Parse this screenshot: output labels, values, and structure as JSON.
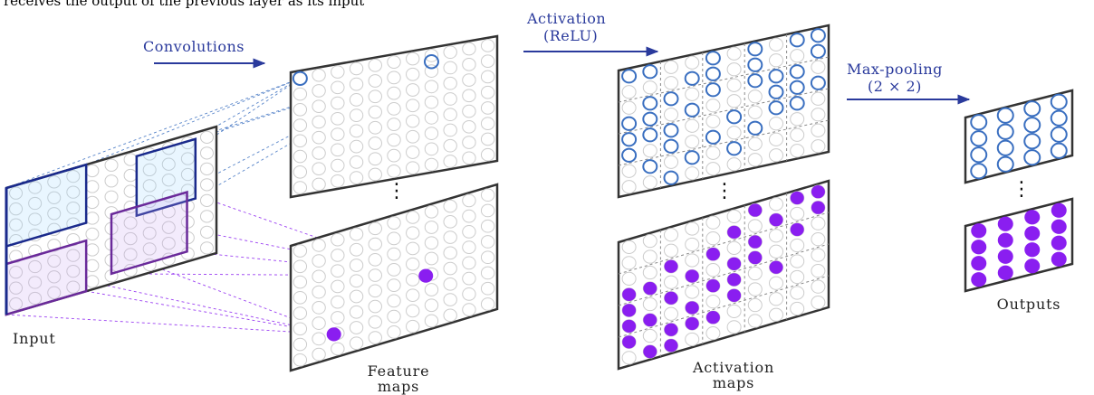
{
  "caption": "receives the output of the previous layer as its input",
  "steps": {
    "convolutions": "Convolutions",
    "activation": "Activation",
    "activation_fn": "(ReLU)",
    "max_pooling": "Max-pooling",
    "pool_size": "(2 × 2)"
  },
  "labels": {
    "input": "Input",
    "feature_maps": [
      "Feature",
      "maps"
    ],
    "activation_maps": [
      "Activation",
      "maps"
    ],
    "outputs": "Outputs"
  },
  "ellipsis": "⋮",
  "colors": {
    "frame": "#333333",
    "grid_circle": "#cccccc",
    "active_blue": "#3a6fc0",
    "active_purple": "#8a1ef0",
    "filter_blue": "#1a2a8c",
    "filter_purple": "#6a2a9a",
    "arrow": "#2a3a9c",
    "step_text": "#2a3a9c"
  }
}
